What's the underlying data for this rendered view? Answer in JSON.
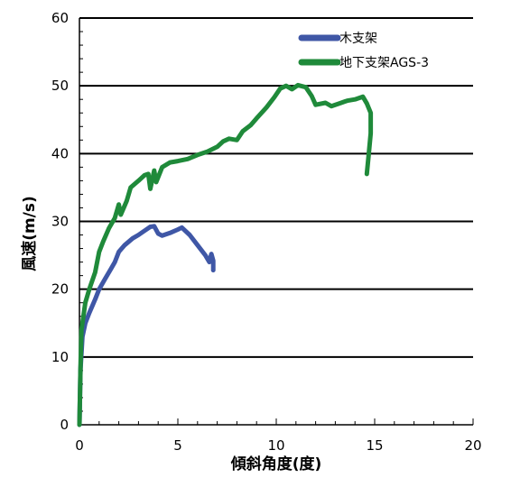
{
  "chart_data": {
    "type": "line",
    "xlabel": "傾斜角度(度)",
    "ylabel": "風速(m/s)",
    "xlim": [
      0,
      20
    ],
    "ylim": [
      0,
      60
    ],
    "xticks": [
      "0",
      "5",
      "10",
      "15",
      "20"
    ],
    "yticks": [
      "0",
      "10",
      "20",
      "30",
      "40",
      "50",
      "60"
    ],
    "grid": "horizontal",
    "legend_position": "top-right",
    "series": [
      {
        "name": "木支架",
        "color": "#3f57a6",
        "points": [
          [
            0.0,
            0.0
          ],
          [
            0.05,
            8
          ],
          [
            0.15,
            13
          ],
          [
            0.3,
            15
          ],
          [
            0.5,
            16.5
          ],
          [
            0.8,
            18.5
          ],
          [
            1.0,
            20
          ],
          [
            1.3,
            21.5
          ],
          [
            1.6,
            23
          ],
          [
            1.8,
            24
          ],
          [
            2.0,
            25.5
          ],
          [
            2.3,
            26.5
          ],
          [
            2.7,
            27.5
          ],
          [
            3.0,
            28
          ],
          [
            3.3,
            28.6
          ],
          [
            3.6,
            29.2
          ],
          [
            3.8,
            29.3
          ],
          [
            4.0,
            28.2
          ],
          [
            4.2,
            27.9
          ],
          [
            4.6,
            28.3
          ],
          [
            5.0,
            28.8
          ],
          [
            5.2,
            29.1
          ],
          [
            5.6,
            28.0
          ],
          [
            6.0,
            26.5
          ],
          [
            6.4,
            25.0
          ],
          [
            6.6,
            24.0
          ],
          [
            6.7,
            25.2
          ],
          [
            6.8,
            24.2
          ],
          [
            6.8,
            22.8
          ]
        ]
      },
      {
        "name": "地下支架AGS-3",
        "color": "#1f8a3a",
        "points": [
          [
            0.0,
            0.0
          ],
          [
            0.05,
            8
          ],
          [
            0.1,
            14
          ],
          [
            0.3,
            18
          ],
          [
            0.5,
            20
          ],
          [
            0.8,
            22.5
          ],
          [
            1.0,
            25.5
          ],
          [
            1.2,
            27
          ],
          [
            1.5,
            29
          ],
          [
            1.8,
            30.5
          ],
          [
            2.0,
            32.5
          ],
          [
            2.1,
            31.0
          ],
          [
            2.4,
            33
          ],
          [
            2.6,
            35
          ],
          [
            3.0,
            36
          ],
          [
            3.3,
            36.8
          ],
          [
            3.5,
            37.0
          ],
          [
            3.6,
            34.8
          ],
          [
            3.8,
            37.5
          ],
          [
            3.9,
            35.8
          ],
          [
            4.2,
            38
          ],
          [
            4.6,
            38.7
          ],
          [
            5.0,
            38.9
          ],
          [
            5.5,
            39.2
          ],
          [
            6.0,
            39.8
          ],
          [
            6.5,
            40.3
          ],
          [
            7.0,
            41
          ],
          [
            7.3,
            41.8
          ],
          [
            7.6,
            42.2
          ],
          [
            8.0,
            42.0
          ],
          [
            8.3,
            43.3
          ],
          [
            8.7,
            44.2
          ],
          [
            9.0,
            45.2
          ],
          [
            9.5,
            46.8
          ],
          [
            9.9,
            48.3
          ],
          [
            10.2,
            49.6
          ],
          [
            10.5,
            50.0
          ],
          [
            10.8,
            49.5
          ],
          [
            11.1,
            50.1
          ],
          [
            11.5,
            49.8
          ],
          [
            11.8,
            48.5
          ],
          [
            12.0,
            47.2
          ],
          [
            12.5,
            47.5
          ],
          [
            12.8,
            47.0
          ],
          [
            13.2,
            47.4
          ],
          [
            13.6,
            47.8
          ],
          [
            14.0,
            48.0
          ],
          [
            14.4,
            48.4
          ],
          [
            14.6,
            47.4
          ],
          [
            14.8,
            46.0
          ],
          [
            14.8,
            43.0
          ],
          [
            14.7,
            40.0
          ],
          [
            14.6,
            37.0
          ]
        ]
      }
    ]
  }
}
